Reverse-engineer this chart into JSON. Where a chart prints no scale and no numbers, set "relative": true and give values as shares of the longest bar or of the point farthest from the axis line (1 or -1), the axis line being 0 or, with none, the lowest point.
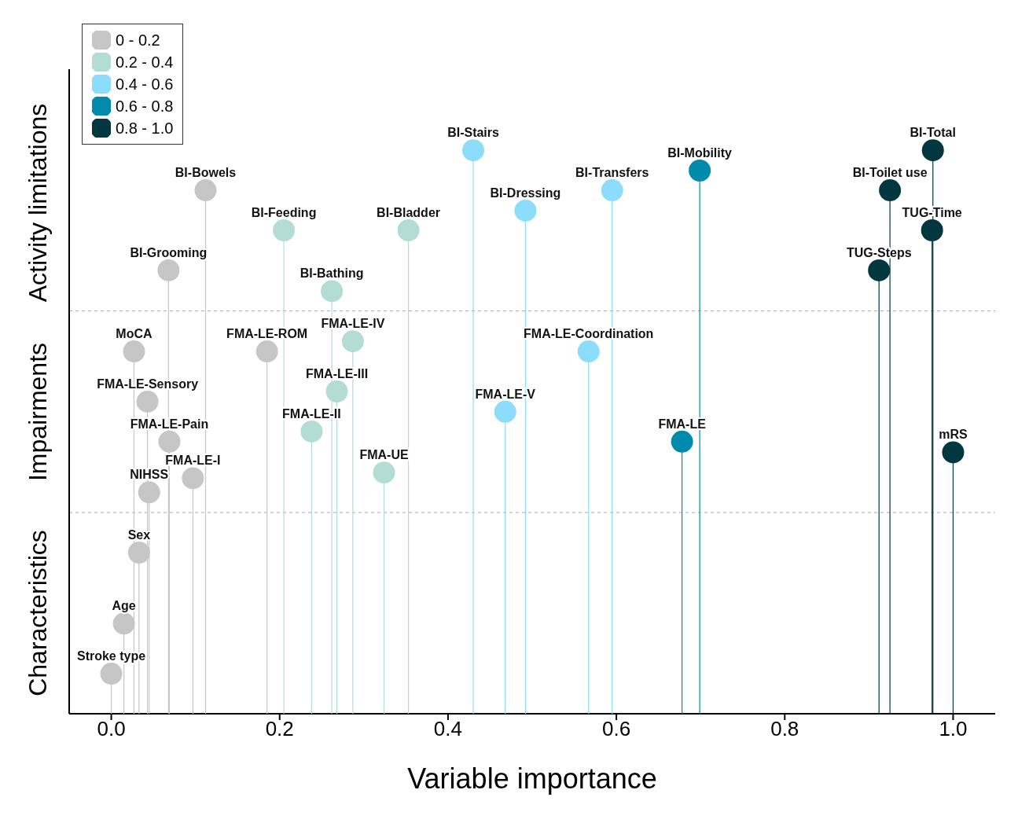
{
  "chart_data": {
    "type": "lollipop",
    "relative": true,
    "xlabel": "Variable importance",
    "xlim": [
      -0.05,
      1.05
    ],
    "xticks": [
      {
        "value": 0,
        "label": "0.0"
      },
      0.2,
      0.4,
      0.6,
      0.8,
      {
        "value": 1,
        "label": "1.0"
      }
    ],
    "tick_labels": "x",
    "legend": "top left",
    "marker": "circle",
    "series": [
      {
        "name": "0 - 0.2",
        "color": "#c6c6c6",
        "x": [
          0.112,
          0.068,
          0.027,
          0.185,
          0.043,
          0.069,
          0.097,
          0.045,
          0.033,
          0.015,
          0.0
        ],
        "values": [
          0.929,
          0.787,
          0.643,
          0.643,
          0.554,
          0.483,
          0.418,
          0.393,
          0.286,
          0.16,
          0.071
        ]
      },
      {
        "name": "0.2 - 0.4",
        "color": "#b3ddd3",
        "x": [
          0.205,
          0.353,
          0.262,
          0.287,
          0.268,
          0.238,
          0.324
        ],
        "values": [
          0.858,
          0.858,
          0.75,
          0.661,
          0.572,
          0.501,
          0.428
        ]
      },
      {
        "name": "0.4 - 0.6",
        "color": "#8cdcfb",
        "x": [
          0.43,
          0.492,
          0.595,
          0.567,
          0.468
        ],
        "values": [
          1.0,
          0.893,
          0.929,
          0.643,
          0.536
        ]
      },
      {
        "name": "0.6 - 0.8",
        "color": "#008aab",
        "x": [
          0.699,
          0.678
        ],
        "values": [
          0.964,
          0.483
        ]
      },
      {
        "name": "0.8 - 1.0",
        "color": "#023740",
        "x": [
          0.976,
          0.925,
          0.975,
          0.912,
          1.0
        ],
        "values": [
          1.0,
          0.929,
          0.858,
          0.787,
          0.464
        ]
      }
    ],
    "ref_lines": [
      {
        "axis": "y",
        "value": 0.715,
        "color": "#aaaaaa",
        "line_style": "dashed"
      },
      {
        "axis": "y",
        "value": 0.357,
        "color": "#aaaaaa",
        "line_style": "dashed"
      }
    ],
    "annotations": [
      "Activity limitations",
      "Impairments",
      "Characteristics",
      {
        "text": "BI-Bowels",
        "x": 0.112,
        "y": 0.929
      },
      {
        "text": "BI-Grooming",
        "x": 0.068,
        "y": 0.787
      },
      {
        "text": "MoCA",
        "x": 0.027,
        "y": 0.643
      },
      {
        "text": "FMA-LE-ROM",
        "x": 0.185,
        "y": 0.643
      },
      {
        "text": "FMA-LE-Sensory",
        "x": 0.043,
        "y": 0.554
      },
      {
        "text": "FMA-LE-Pain",
        "x": 0.069,
        "y": 0.483
      },
      {
        "text": "FMA-LE-I",
        "x": 0.097,
        "y": 0.418
      },
      {
        "text": "NIHSS",
        "x": 0.045,
        "y": 0.393
      },
      {
        "text": "Sex",
        "x": 0.033,
        "y": 0.286
      },
      {
        "text": "Age",
        "x": 0.015,
        "y": 0.16
      },
      {
        "text": "Stroke type",
        "x": 0.0,
        "y": 0.071
      },
      {
        "text": "BI-Feeding",
        "x": 0.205,
        "y": 0.858
      },
      {
        "text": "BI-Bladder",
        "x": 0.353,
        "y": 0.858
      },
      {
        "text": "BI-Bathing",
        "x": 0.262,
        "y": 0.75
      },
      {
        "text": "FMA-LE-IV",
        "x": 0.287,
        "y": 0.661
      },
      {
        "text": "FMA-LE-III",
        "x": 0.268,
        "y": 0.572
      },
      {
        "text": "FMA-LE-II",
        "x": 0.238,
        "y": 0.501
      },
      {
        "text": "FMA-UE",
        "x": 0.324,
        "y": 0.428
      },
      {
        "text": "BI-Stairs",
        "x": 0.43,
        "y": 1.0
      },
      {
        "text": "BI-Dressing",
        "x": 0.492,
        "y": 0.893
      },
      {
        "text": "BI-Transfers",
        "x": 0.595,
        "y": 0.929
      },
      {
        "text": "FMA-LE-Coordination",
        "x": 0.567,
        "y": 0.643
      },
      {
        "text": "FMA-LE-V",
        "x": 0.468,
        "y": 0.536
      },
      {
        "text": "BI-Mobility",
        "x": 0.699,
        "y": 0.964
      },
      {
        "text": "FMA-LE",
        "x": 0.678,
        "y": 0.483
      },
      {
        "text": "BI-Total",
        "x": 0.976,
        "y": 1.0
      },
      {
        "text": "BI-Toilet use",
        "x": 0.925,
        "y": 0.929
      },
      {
        "text": "TUG-Time",
        "x": 0.975,
        "y": 0.858
      },
      {
        "text": "TUG-Steps",
        "x": 0.912,
        "y": 0.787
      },
      {
        "text": "mRS",
        "x": 1.0,
        "y": 0.464
      }
    ]
  }
}
